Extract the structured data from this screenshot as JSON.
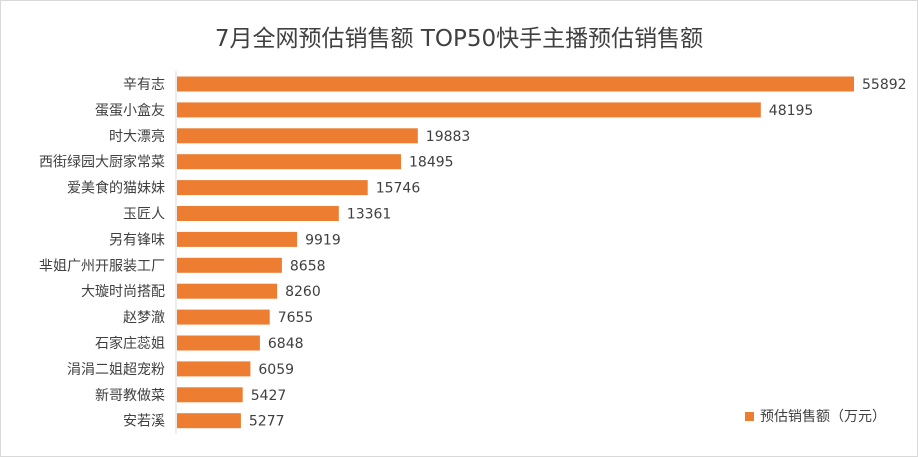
{
  "chart_data": {
    "type": "bar",
    "orientation": "horizontal",
    "title": "7月全网预估销售额 TOP50快手主播预估销售额",
    "categories": [
      "辛有志",
      "蛋蛋小盒友",
      "时大漂亮",
      "西街绿园大厨家常菜",
      "爱美食的猫妹妹",
      "玉匠人",
      "另有锋味",
      "芈姐广州开服装工厂",
      "大璇时尚搭配",
      "赵梦澈",
      "石家庄蕊姐",
      "涓涓二姐超宠粉",
      "新哥教做菜",
      "安若溪"
    ],
    "series": [
      {
        "name": "预估销售额（万元）",
        "color": "#ED7D31",
        "values": [
          55892,
          48195,
          19883,
          18495,
          15746,
          13361,
          9919,
          8658,
          8260,
          7655,
          6848,
          6059,
          5427,
          5277
        ]
      }
    ],
    "xlim": [
      0,
      55892
    ],
    "grid": false,
    "legend_position": "bottom-right"
  }
}
